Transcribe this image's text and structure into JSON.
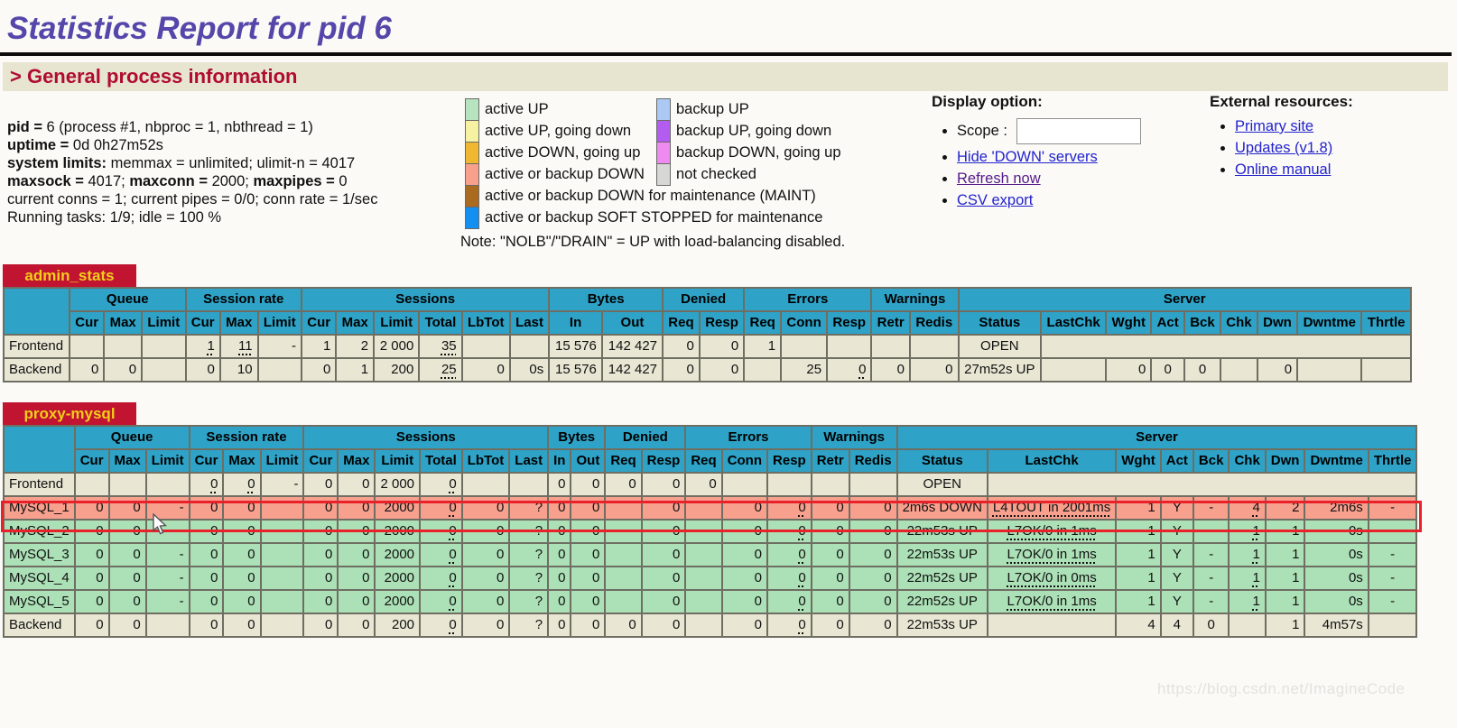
{
  "page": {
    "title": "Statistics Report for pid 6",
    "section_heading": "> General process information",
    "watermark": "https://blog.csdn.net/ImagineCode"
  },
  "process_info": {
    "lines": [
      [
        {
          "t": "pid = ",
          "b": true
        },
        {
          "t": "6 (process #1, nbproc = 1, nbthread = 1)"
        }
      ],
      [
        {
          "t": "uptime = ",
          "b": true
        },
        {
          "t": "0d 0h27m52s"
        }
      ],
      [
        {
          "t": "system limits: ",
          "b": true
        },
        {
          "t": "memmax = unlimited; ulimit-n = 4017"
        }
      ],
      [
        {
          "t": "maxsock = ",
          "b": true
        },
        {
          "t": "4017; "
        },
        {
          "t": "maxconn = ",
          "b": true
        },
        {
          "t": "2000; "
        },
        {
          "t": "maxpipes = ",
          "b": true
        },
        {
          "t": "0"
        }
      ],
      [
        {
          "t": "current conns = 1; current pipes = 0/0; conn rate = 1/sec"
        }
      ],
      [
        {
          "t": "Running tasks: 1/9; idle = 100 %"
        }
      ]
    ]
  },
  "legend": {
    "pairs": [
      {
        "left": {
          "color": "#b7e3bf",
          "label": "active UP"
        },
        "right": {
          "color": "#abc9f3",
          "label": "backup UP"
        }
      },
      {
        "left": {
          "color": "#f6f2a2",
          "label": "active UP, going down"
        },
        "right": {
          "color": "#b35cf0",
          "label": "backup UP, going down"
        }
      },
      {
        "left": {
          "color": "#f0b731",
          "label": "active DOWN, going up"
        },
        "right": {
          "color": "#ef8af0",
          "label": "backup DOWN, going up"
        }
      },
      {
        "left": {
          "color": "#f7a08c",
          "label": "active or backup DOWN"
        },
        "right": {
          "color": "#d7d7d3",
          "label": "not checked"
        }
      },
      {
        "left": {
          "color": "#aa6b21",
          "label": "active or backup DOWN for maintenance (MAINT)"
        },
        "right": null
      },
      {
        "left": {
          "color": "#128ff0",
          "label": "active or backup SOFT STOPPED for maintenance"
        },
        "right": null
      }
    ],
    "note": "Note: \"NOLB\"/\"DRAIN\" = UP with load-balancing disabled."
  },
  "display_option": {
    "heading": "Display option:",
    "scope_label": "Scope :",
    "scope_value": "",
    "links": [
      {
        "label": "Hide 'DOWN' servers",
        "visited": false
      },
      {
        "label": "Refresh now",
        "visited": true
      },
      {
        "label": "CSV export",
        "visited": false
      }
    ]
  },
  "external_resources": {
    "heading": "External resources:",
    "links": [
      {
        "label": "Primary site",
        "visited": false
      },
      {
        "label": "Updates (v1.8)",
        "visited": false
      },
      {
        "label": "Online manual",
        "visited": false
      }
    ]
  },
  "table_headers": {
    "groups": [
      {
        "label": "Queue",
        "span": 3
      },
      {
        "label": "Session rate",
        "span": 3
      },
      {
        "label": "Sessions",
        "span": 6
      },
      {
        "label": "Bytes",
        "span": 2
      },
      {
        "label": "Denied",
        "span": 2
      },
      {
        "label": "Errors",
        "span": 3
      },
      {
        "label": "Warnings",
        "span": 2
      },
      {
        "label": "Server",
        "span": 9
      }
    ],
    "columns": [
      "Cur",
      "Max",
      "Limit",
      "Cur",
      "Max",
      "Limit",
      "Cur",
      "Max",
      "Limit",
      "Total",
      "LbTot",
      "Last",
      "In",
      "Out",
      "Req",
      "Resp",
      "Req",
      "Conn",
      "Resp",
      "Retr",
      "Redis",
      "Status",
      "LastChk",
      "Wght",
      "Act",
      "Bck",
      "Chk",
      "Dwn",
      "Dwntme",
      "Thrtle"
    ]
  },
  "tables": [
    {
      "name": "admin_stats",
      "rows": [
        {
          "name": "Frontend",
          "type": "frontend",
          "merge_server_tail": true,
          "cells": [
            "",
            "",
            "",
            "~1",
            "~11",
            "-",
            "1",
            "2",
            "2 000",
            "~35",
            "",
            "",
            "15 576",
            "142 427",
            "0",
            "0",
            "1",
            "",
            "",
            "",
            "",
            "OPEN",
            "",
            "",
            "",
            "",
            "",
            "",
            "",
            ""
          ]
        },
        {
          "name": "Backend",
          "type": "backend",
          "merge_server_tail": false,
          "cells": [
            "0",
            "0",
            "",
            "0",
            "10",
            "",
            "0",
            "1",
            "200",
            "~25",
            "0",
            "0s",
            "15 576",
            "142 427",
            "0",
            "0",
            "",
            "25",
            "~0",
            "0",
            "0",
            "27m52s UP",
            "",
            "0",
            "0",
            "0",
            "",
            "0",
            "",
            ""
          ]
        }
      ]
    },
    {
      "name": "proxy-mysql",
      "rows": [
        {
          "name": "Frontend",
          "type": "frontend",
          "merge_server_tail": true,
          "cells": [
            "",
            "",
            "",
            "~0",
            "~0",
            "-",
            "0",
            "0",
            "2 000",
            "~0",
            "",
            "",
            "0",
            "0",
            "0",
            "0",
            "0",
            "",
            "",
            "",
            "",
            "OPEN",
            "",
            "",
            "",
            "",
            "",
            "",
            "",
            ""
          ]
        },
        {
          "name": "MySQL_1",
          "type": "down",
          "merge_server_tail": false,
          "cells": [
            "0",
            "0",
            "-",
            "0",
            "0",
            "",
            "0",
            "0",
            "2000",
            "~0",
            "0",
            "?",
            "0",
            "0",
            "",
            "0",
            "",
            "0",
            "~0",
            "0",
            "0",
            "2m6s DOWN",
            "~L4TOUT in 2001ms",
            "1",
            "Y",
            "-",
            "~4",
            "2",
            "2m6s",
            "-"
          ]
        },
        {
          "name": "MySQL_2",
          "type": "up",
          "merge_server_tail": false,
          "cells": [
            "0",
            "0",
            "-",
            "0",
            "0",
            "",
            "0",
            "0",
            "2000",
            "~0",
            "0",
            "?",
            "0",
            "0",
            "",
            "0",
            "",
            "0",
            "~0",
            "0",
            "0",
            "22m53s UP",
            "~L7OK/0 in 1ms",
            "1",
            "Y",
            "-",
            "~1",
            "1",
            "0s",
            "-"
          ]
        },
        {
          "name": "MySQL_3",
          "type": "up",
          "merge_server_tail": false,
          "cells": [
            "0",
            "0",
            "-",
            "0",
            "0",
            "",
            "0",
            "0",
            "2000",
            "~0",
            "0",
            "?",
            "0",
            "0",
            "",
            "0",
            "",
            "0",
            "~0",
            "0",
            "0",
            "22m53s UP",
            "~L7OK/0 in 1ms",
            "1",
            "Y",
            "-",
            "~1",
            "1",
            "0s",
            "-"
          ]
        },
        {
          "name": "MySQL_4",
          "type": "up",
          "merge_server_tail": false,
          "cells": [
            "0",
            "0",
            "-",
            "0",
            "0",
            "",
            "0",
            "0",
            "2000",
            "~0",
            "0",
            "?",
            "0",
            "0",
            "",
            "0",
            "",
            "0",
            "~0",
            "0",
            "0",
            "22m52s UP",
            "~L7OK/0 in 0ms",
            "1",
            "Y",
            "-",
            "~1",
            "1",
            "0s",
            "-"
          ]
        },
        {
          "name": "MySQL_5",
          "type": "up",
          "merge_server_tail": false,
          "cells": [
            "0",
            "0",
            "-",
            "0",
            "0",
            "",
            "0",
            "0",
            "2000",
            "~0",
            "0",
            "?",
            "0",
            "0",
            "",
            "0",
            "",
            "0",
            "~0",
            "0",
            "0",
            "22m52s UP",
            "~L7OK/0 in 1ms",
            "1",
            "Y",
            "-",
            "~1",
            "1",
            "0s",
            "-"
          ]
        },
        {
          "name": "Backend",
          "type": "backend",
          "merge_server_tail": false,
          "cells": [
            "0",
            "0",
            "",
            "0",
            "0",
            "",
            "0",
            "0",
            "200",
            "~0",
            "0",
            "?",
            "0",
            "0",
            "0",
            "0",
            "",
            "0",
            "~0",
            "0",
            "0",
            "22m53s UP",
            "",
            "4",
            "4",
            "0",
            "",
            "1",
            "4m57s",
            ""
          ]
        }
      ]
    }
  ]
}
